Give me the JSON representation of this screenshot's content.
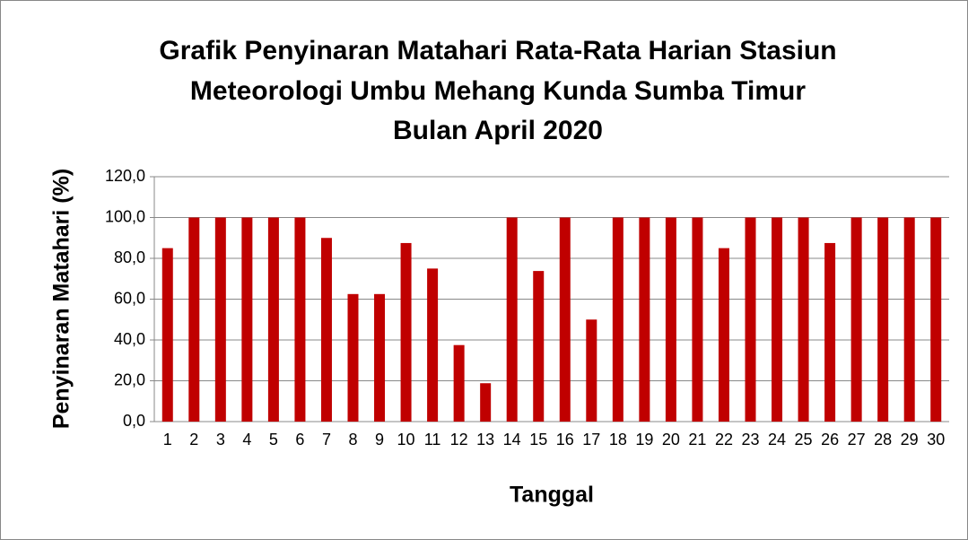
{
  "chart_data": {
    "type": "bar",
    "title": [
      "Grafik Penyinaran Matahari Rata-Rata Harian Stasiun",
      "Meteorologi Umbu Mehang Kunda Sumba Timur",
      "Bulan April 2020"
    ],
    "x_label": "Tanggal",
    "y_label": "Penyinaran Matahari (%)",
    "categories": [
      "1",
      "2",
      "3",
      "4",
      "5",
      "6",
      "7",
      "8",
      "9",
      "10",
      "11",
      "12",
      "13",
      "14",
      "15",
      "16",
      "17",
      "18",
      "19",
      "20",
      "21",
      "22",
      "23",
      "24",
      "25",
      "26",
      "27",
      "28",
      "29",
      "30"
    ],
    "values": [
      85,
      100,
      100,
      100,
      100,
      100,
      90,
      62.5,
      62.5,
      87.5,
      75,
      37.5,
      18.8,
      100,
      73.8,
      100,
      50,
      100,
      100,
      100,
      100,
      85,
      100,
      100,
      100,
      87.5,
      100,
      100,
      100,
      100
    ],
    "color": "#c00000",
    "ylim": [
      0,
      120
    ],
    "yticks": [
      {
        "value": 0,
        "label": "0,0"
      },
      {
        "value": 20,
        "label": "20,0"
      },
      {
        "value": 40,
        "label": "40,0"
      },
      {
        "value": 60,
        "label": "60,0"
      },
      {
        "value": 80,
        "label": "80,0"
      },
      {
        "value": 100,
        "label": "100,0"
      },
      {
        "value": 120,
        "label": "120,0"
      }
    ],
    "grid": true
  }
}
